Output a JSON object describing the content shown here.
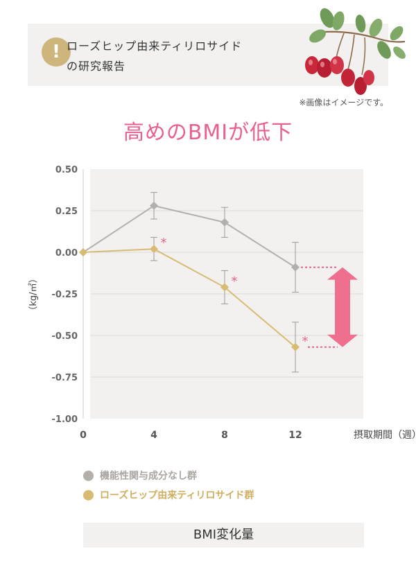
{
  "header": {
    "badge": "!",
    "title_line1": "ローズヒップ由来ティリロサイド",
    "title_line2": "の研究報告"
  },
  "note": "※画像はイメージです。",
  "main_title": "高めのBMIが低下",
  "legend": [
    {
      "label": "機能性関与成分なし群",
      "color": "#b3afab"
    },
    {
      "label": "ローズヒップ由来ティリロサイド群",
      "color": "#d8bb73"
    }
  ],
  "caption": "BMI変化量",
  "colors": {
    "accent": "#e8618c",
    "gold": "#d8bb73",
    "grey": "#b3afab",
    "plot_bg": "#f2f1ef"
  },
  "chart_data": {
    "type": "line",
    "title": "高めのBMIが低下",
    "xlabel": "摂取期間（週）",
    "ylabel": "（kg/㎡）",
    "x": [
      0,
      4,
      8,
      12
    ],
    "x_tick_labels": [
      "0",
      "4",
      "8",
      "12"
    ],
    "ylim": [
      -1.0,
      0.5
    ],
    "y_ticks": [
      0.5,
      0.25,
      0.0,
      -0.25,
      -0.5,
      -0.75,
      -1.0
    ],
    "y_tick_labels": [
      "0.50",
      "0.25",
      "0.00",
      "-0.25",
      "-0.50",
      "-0.75",
      "-1.00"
    ],
    "grid": true,
    "series": [
      {
        "name": "機能性関与成分なし群",
        "color": "#b3afab",
        "values": [
          0.0,
          0.28,
          0.18,
          -0.09
        ],
        "error": [
          0,
          0.08,
          0.09,
          0.15
        ]
      },
      {
        "name": "ローズヒップ由来ティリロサイド群",
        "color": "#d8bb73",
        "values": [
          0.0,
          0.02,
          -0.21,
          -0.57
        ],
        "error": [
          0,
          0.07,
          0.1,
          0.15
        ],
        "significance": [
          "",
          "*",
          "*",
          "*"
        ]
      }
    ]
  }
}
